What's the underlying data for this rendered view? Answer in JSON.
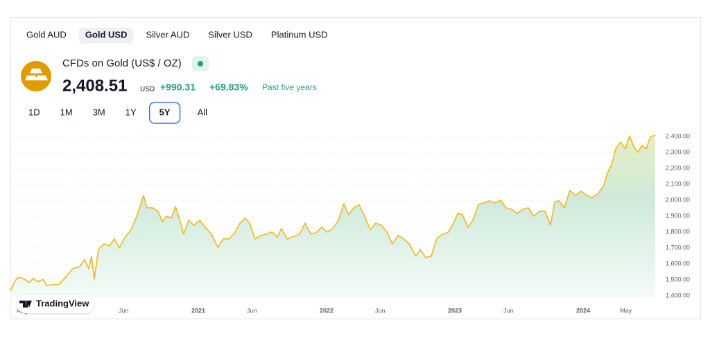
{
  "tabs": [
    "Gold AUD",
    "Gold USD",
    "Silver AUD",
    "Silver USD",
    "Platinum USD"
  ],
  "active_tab": 1,
  "symbol": {
    "name": "CFDs on Gold (US$ / OZ)",
    "price": "2,408.51",
    "currency": "USD",
    "change": "+990.31",
    "change_percent": "+69.83%",
    "period": "Past five years"
  },
  "ranges": [
    "1D",
    "1M",
    "3M",
    "1Y",
    "5Y",
    "All"
  ],
  "active_range": 4,
  "logo": "TradingView",
  "chart_data": {
    "type": "area",
    "color": "#f0b71c",
    "grid": true,
    "x": [
      2019.535,
      2019.573,
      2019.605,
      2019.643,
      2019.681,
      2019.713,
      2019.751,
      2019.789,
      2019.816,
      2019.859,
      2019.913,
      2019.967,
      2020.021,
      2020.076,
      2020.113,
      2020.146,
      2020.167,
      2020.189,
      2020.221,
      2020.265,
      2020.308,
      2020.346,
      2020.384,
      2020.427,
      2020.481,
      2020.524,
      2020.573,
      2020.6,
      2020.643,
      2020.686,
      2020.719,
      2020.751,
      2020.789,
      2020.822,
      2020.859,
      2020.886,
      2020.924,
      2020.967,
      2021.011,
      2021.054,
      2021.103,
      2021.151,
      2021.195,
      2021.238,
      2021.281,
      2021.324,
      2021.367,
      2021.4,
      2021.443,
      2021.486,
      2021.53,
      2021.573,
      2021.616,
      2021.649,
      2021.692,
      2021.735,
      2021.789,
      2021.832,
      2021.876,
      2021.919,
      2021.962,
      2022.005,
      2022.049,
      2022.092,
      2022.135,
      2022.173,
      2022.211,
      2022.254,
      2022.297,
      2022.34,
      2022.384,
      2022.427,
      2022.47,
      2022.513,
      2022.557,
      2022.6,
      2022.643,
      2022.697,
      2022.73,
      2022.773,
      2022.816,
      2022.859,
      2022.903,
      2022.946,
      2022.989,
      2023.022,
      2023.059,
      2023.103,
      2023.14,
      2023.184,
      2023.227,
      2023.27,
      2023.313,
      2023.357,
      2023.4,
      2023.443,
      2023.486,
      2023.53,
      2023.573,
      2023.616,
      2023.659,
      2023.703,
      2023.746,
      2023.778,
      2023.811,
      2023.854,
      2023.897,
      2023.94,
      2023.984,
      2024.027,
      2024.07,
      2024.113,
      2024.157,
      2024.189,
      2024.222,
      2024.254,
      2024.292,
      2024.33,
      2024.362,
      2024.395,
      2024.427,
      2024.459,
      2024.492,
      2024.524,
      2024.562
    ],
    "values": [
      1430,
      1496,
      1517,
      1504,
      1483,
      1509,
      1487,
      1504,
      1465,
      1470,
      1470,
      1517,
      1570,
      1583,
      1626,
      1570,
      1648,
      1504,
      1691,
      1726,
      1713,
      1757,
      1700,
      1765,
      1822,
      1909,
      2030,
      1952,
      1952,
      1930,
      1865,
      1900,
      1887,
      1961,
      1865,
      1787,
      1874,
      1843,
      1874,
      1830,
      1787,
      1704,
      1757,
      1757,
      1791,
      1856,
      1887,
      1856,
      1757,
      1778,
      1787,
      1800,
      1770,
      1822,
      1757,
      1770,
      1787,
      1856,
      1787,
      1796,
      1830,
      1800,
      1822,
      1874,
      1978,
      1909,
      1952,
      1970,
      1900,
      1813,
      1856,
      1843,
      1800,
      1726,
      1778,
      1757,
      1726,
      1648,
      1691,
      1639,
      1648,
      1757,
      1787,
      1796,
      1856,
      1917,
      1909,
      1830,
      1874,
      1974,
      1983,
      1996,
      1983,
      2000,
      1952,
      1943,
      1917,
      1943,
      1952,
      1900,
      1930,
      1930,
      1843,
      1987,
      1996,
      1952,
      2061,
      2030,
      2057,
      2030,
      2017,
      2039,
      2083,
      2170,
      2222,
      2322,
      2365,
      2322,
      2404,
      2335,
      2300,
      2343,
      2322,
      2396,
      2408
    ],
    "xlim": [
      2019.535,
      2024.562
    ],
    "xticks": [
      {
        "value": 2019.583,
        "label": "Aug"
      },
      {
        "value": 2020.417,
        "label": "Jun"
      },
      2021,
      {
        "value": 2021.417,
        "label": "Jun"
      },
      2022,
      {
        "value": 2022.417,
        "label": "Jun"
      },
      2023,
      {
        "value": 2023.417,
        "label": "Jun"
      },
      2024,
      {
        "value": 2024.333,
        "label": "May"
      }
    ],
    "ylim": [
      1387,
      2439
    ],
    "yticks": [
      {
        "value": 1400,
        "label": "1,400.00"
      },
      {
        "value": 1500,
        "label": "1,500.00"
      },
      {
        "value": 1600,
        "label": "1,600.00"
      },
      {
        "value": 1700,
        "label": "1,700.00"
      },
      {
        "value": 1800,
        "label": "1,800.00"
      },
      {
        "value": 1900,
        "label": "1,900.00"
      },
      {
        "value": 2000,
        "label": "2,000.00"
      },
      {
        "value": 2100,
        "label": "2,100.00"
      },
      {
        "value": 2200,
        "label": "2,200.00"
      },
      {
        "value": 2300,
        "label": "2,300.00"
      },
      {
        "value": 2400,
        "label": "2,400.00"
      }
    ]
  }
}
